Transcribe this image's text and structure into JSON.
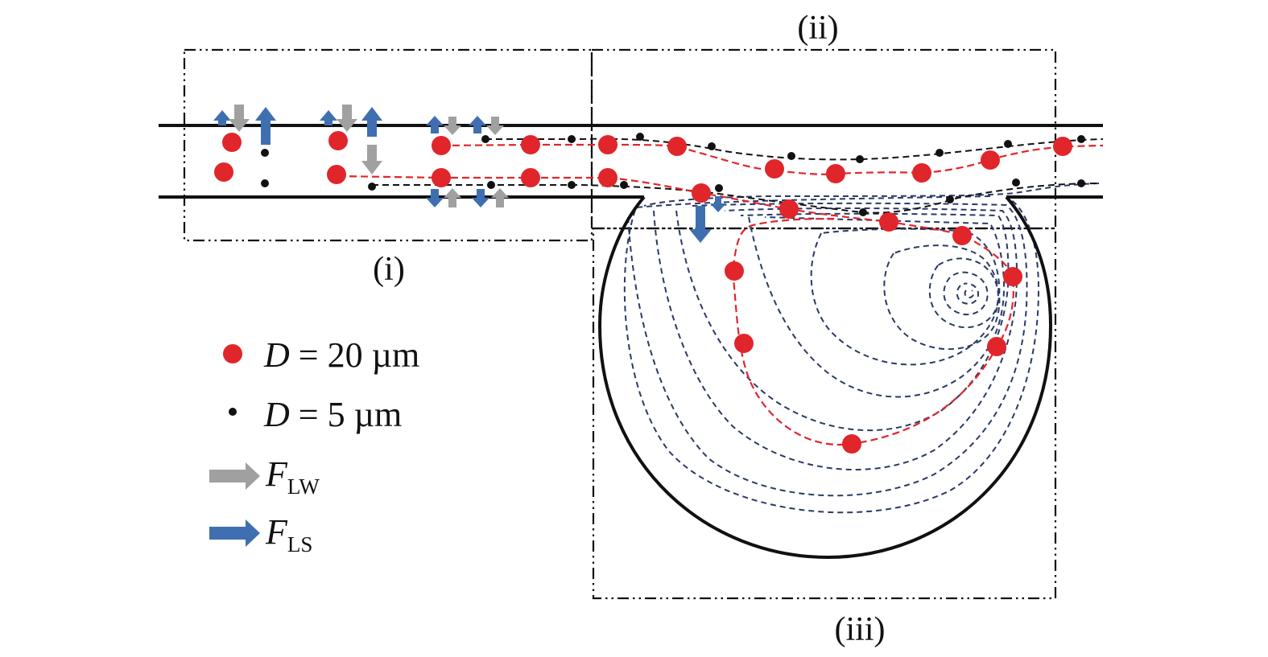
{
  "panels": {
    "i": "(i)",
    "ii": "(ii)",
    "iii": "(iii)"
  },
  "legend": {
    "large_particle": {
      "var": "D",
      "rest": " = 20 µm"
    },
    "small_particle": {
      "var": "D",
      "rest": " = 5 µm"
    },
    "wall_force": {
      "var": "F",
      "sub": "LW"
    },
    "shear_force": {
      "var": "F",
      "sub": "LS"
    }
  },
  "colors": {
    "large_particle": "#e0262b",
    "small_particle": "#111111",
    "wall_force_arrow": "#a0a0a0",
    "shear_force_arrow": "#3f6fb0",
    "streamline": "#2a3a66",
    "large_trajectory": "#e0262b",
    "channel_wall": "#111111"
  },
  "icons": {
    "large_particle": "red-dot-icon",
    "small_particle": "black-dot-icon",
    "wall_force": "gray-arrow-icon",
    "shear_force": "blue-arrow-icon"
  }
}
